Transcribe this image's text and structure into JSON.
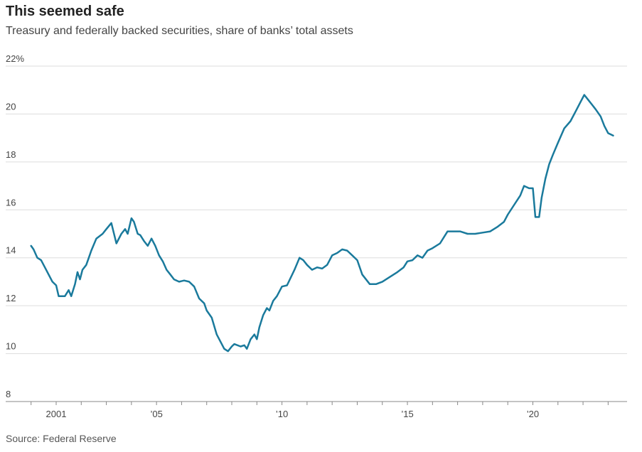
{
  "title": "This seemed safe",
  "subtitle": "Treasury and federally backed securities, share of banks’ total assets",
  "source": "Source: Federal Reserve",
  "chart_data": {
    "type": "line",
    "title": "This seemed safe",
    "subtitle": "Treasury and federally backed securities, share of banks’ total assets",
    "xlabel": "",
    "ylabel": "",
    "xlim": [
      2000,
      2023.5
    ],
    "ylim": [
      8,
      22
    ],
    "y_ticks": [
      {
        "value": 22,
        "label": "22%"
      },
      {
        "value": 20,
        "label": "20"
      },
      {
        "value": 18,
        "label": "18"
      },
      {
        "value": 16,
        "label": "16"
      },
      {
        "value": 14,
        "label": "14"
      },
      {
        "value": 12,
        "label": "12"
      },
      {
        "value": 10,
        "label": "10"
      },
      {
        "value": 8,
        "label": "8"
      }
    ],
    "x_ticks": [
      {
        "value": 2001,
        "label": "2001"
      },
      {
        "value": 2005,
        "label": "’05"
      },
      {
        "value": 2010,
        "label": "’10"
      },
      {
        "value": 2015,
        "label": "’15"
      },
      {
        "value": 2020,
        "label": "’20"
      }
    ],
    "grid": true,
    "line_color": "#1a7a9c",
    "series": [
      {
        "name": "",
        "x": [
          2000.0,
          2000.1,
          2000.25,
          2000.4,
          2000.6,
          2000.85,
          2001.0,
          2001.1,
          2001.35,
          2001.5,
          2001.6,
          2001.75,
          2001.85,
          2001.95,
          2002.05,
          2002.2,
          2002.3,
          2002.4,
          2002.6,
          2002.85,
          2003.0,
          2003.2,
          2003.4,
          2003.6,
          2003.75,
          2003.85,
          2004.0,
          2004.1,
          2004.25,
          2004.35,
          2004.5,
          2004.65,
          2004.8,
          2004.95,
          2005.1,
          2005.25,
          2005.4,
          2005.55,
          2005.7,
          2005.9,
          2006.1,
          2006.3,
          2006.5,
          2006.7,
          2006.9,
          2007.0,
          2007.2,
          2007.4,
          2007.55,
          2007.7,
          2007.85,
          2008.0,
          2008.1,
          2008.35,
          2008.5,
          2008.6,
          2008.75,
          2008.9,
          2009.0,
          2009.1,
          2009.25,
          2009.4,
          2009.5,
          2009.65,
          2009.8,
          2010.0,
          2010.2,
          2010.5,
          2010.7,
          2010.85,
          2011.0,
          2011.2,
          2011.4,
          2011.6,
          2011.8,
          2012.0,
          2012.2,
          2012.4,
          2012.6,
          2012.8,
          2013.0,
          2013.2,
          2013.5,
          2013.75,
          2014.0,
          2014.3,
          2014.6,
          2014.85,
          2015.0,
          2015.2,
          2015.4,
          2015.6,
          2015.8,
          2016.0,
          2016.3,
          2016.6,
          2016.85,
          2017.1,
          2017.4,
          2017.7,
          2018.0,
          2018.3,
          2018.6,
          2018.85,
          2019.0,
          2019.25,
          2019.5,
          2019.65,
          2019.85,
          2020.0,
          2020.1,
          2020.25,
          2020.35,
          2020.5,
          2020.65,
          2020.8,
          2021.0,
          2021.25,
          2021.5,
          2021.7,
          2021.9,
          2022.05,
          2022.2,
          2022.35,
          2022.5,
          2022.7,
          2022.85,
          2023.0,
          2023.2
        ],
        "values": [
          14.5,
          14.35,
          14.0,
          13.9,
          13.5,
          13.0,
          12.85,
          12.4,
          12.4,
          12.65,
          12.4,
          12.9,
          13.4,
          13.1,
          13.5,
          13.7,
          14.0,
          14.3,
          14.8,
          15.0,
          15.2,
          15.45,
          14.6,
          15.0,
          15.2,
          15.0,
          15.65,
          15.5,
          15.0,
          14.95,
          14.7,
          14.5,
          14.8,
          14.5,
          14.1,
          13.85,
          13.5,
          13.3,
          13.1,
          13.0,
          13.05,
          13.0,
          12.8,
          12.3,
          12.1,
          11.8,
          11.5,
          10.8,
          10.5,
          10.2,
          10.1,
          10.3,
          10.4,
          10.3,
          10.35,
          10.2,
          10.6,
          10.8,
          10.6,
          11.1,
          11.6,
          11.9,
          11.8,
          12.2,
          12.4,
          12.8,
          12.85,
          13.5,
          14.0,
          13.9,
          13.7,
          13.5,
          13.6,
          13.55,
          13.7,
          14.1,
          14.2,
          14.35,
          14.3,
          14.1,
          13.9,
          13.3,
          12.9,
          12.9,
          13.0,
          13.2,
          13.4,
          13.6,
          13.85,
          13.9,
          14.1,
          14.0,
          14.3,
          14.4,
          14.6,
          15.1,
          15.1,
          15.1,
          15.0,
          15.0,
          15.05,
          15.1,
          15.3,
          15.5,
          15.8,
          16.2,
          16.6,
          17.0,
          16.9,
          16.9,
          15.7,
          15.7,
          16.5,
          17.3,
          17.9,
          18.3,
          18.8,
          19.4,
          19.7,
          20.1,
          20.5,
          20.8,
          20.6,
          20.4,
          20.2,
          19.9,
          19.5,
          19.2,
          19.1
        ]
      }
    ]
  }
}
